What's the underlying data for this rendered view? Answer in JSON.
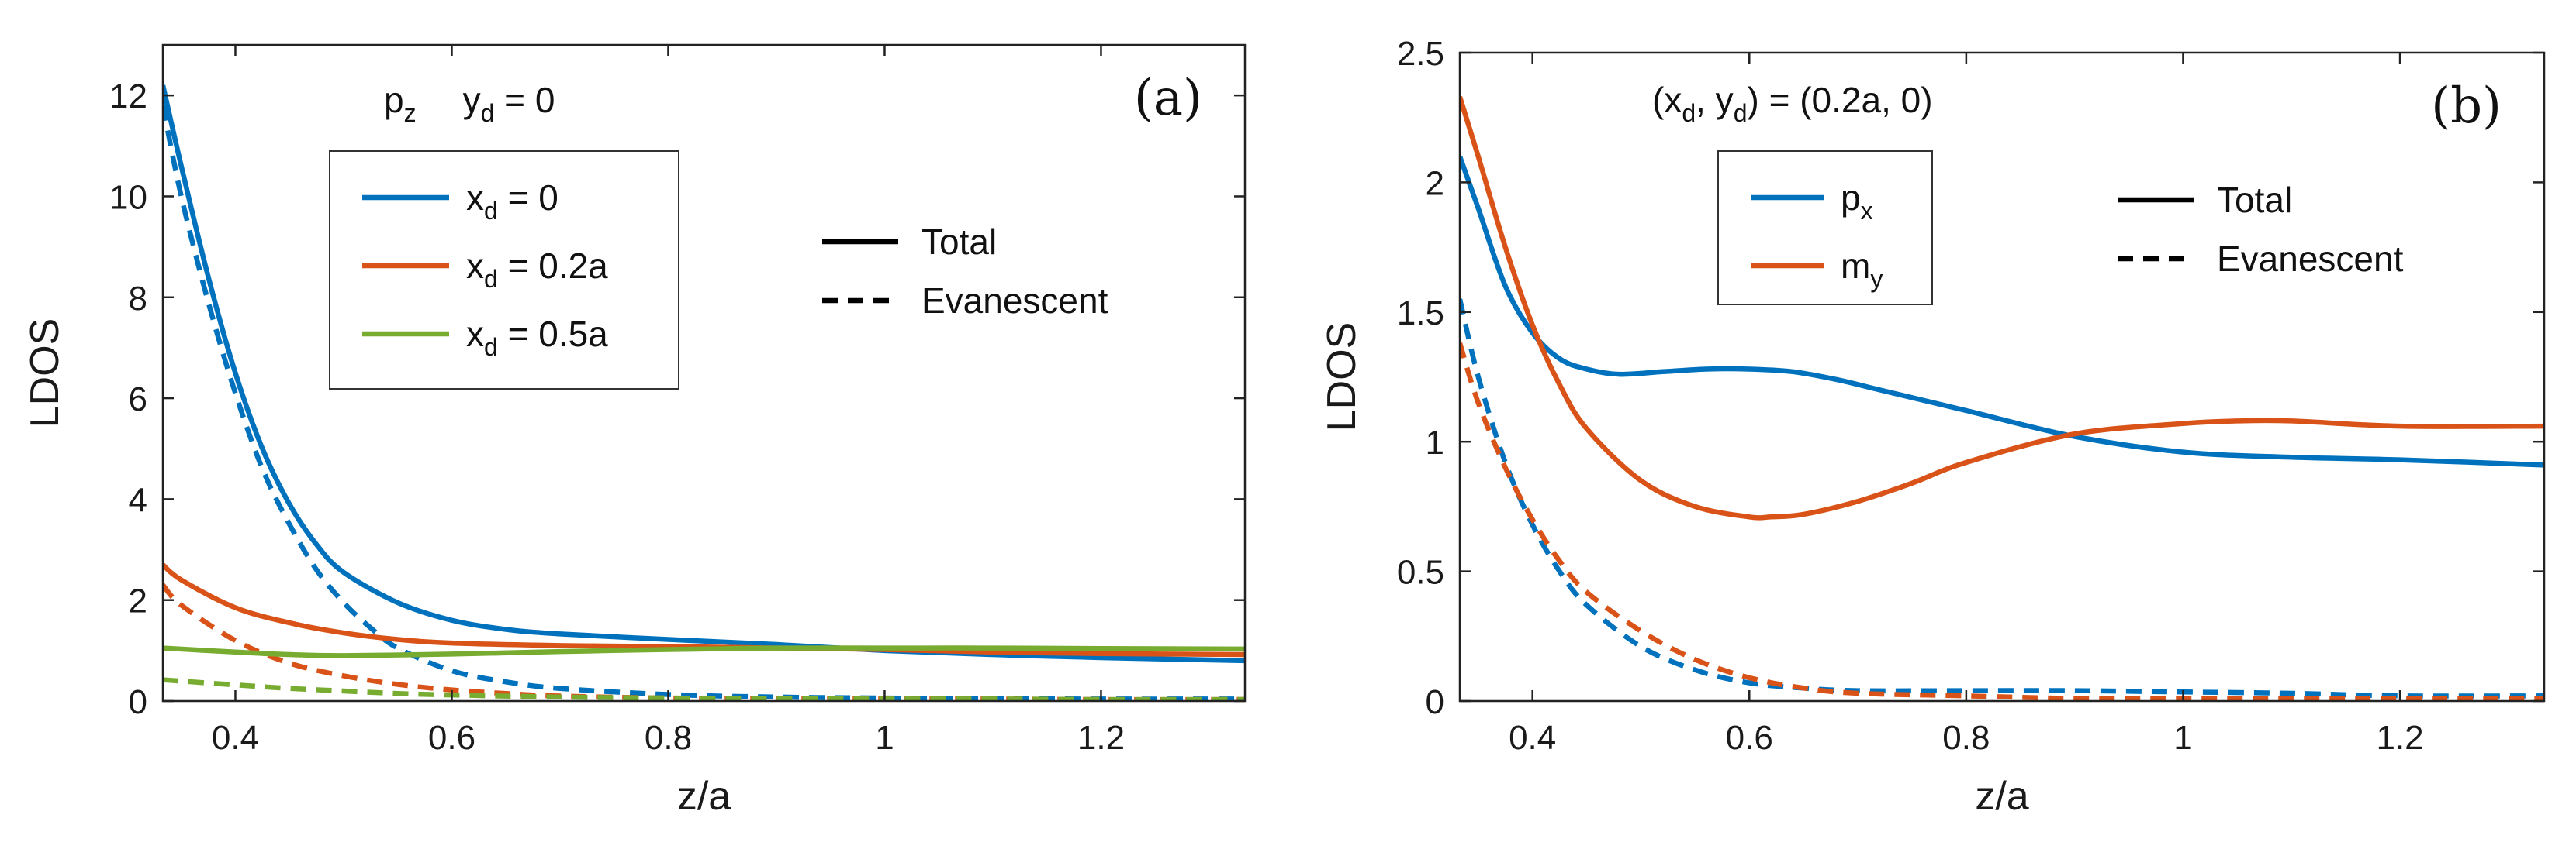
{
  "chart_data": [
    {
      "type": "line",
      "panel_label": "(a)",
      "xlabel": "z/a",
      "ylabel": "LDOS",
      "xlim": [
        0.333,
        1.333
      ],
      "ylim": [
        0,
        13
      ],
      "xticks": [
        "0.4",
        "0.6",
        "0.8",
        "1",
        "1.2"
      ],
      "xtick_values": [
        0.4,
        0.6,
        0.8,
        1.0,
        1.2
      ],
      "yticks": [
        "0",
        "2",
        "4",
        "6",
        "8",
        "10",
        "12"
      ],
      "ytick_values": [
        0,
        2,
        4,
        6,
        8,
        10,
        12
      ],
      "annotation": {
        "dipole": "p",
        "dipole_sub": "z",
        "cond": "y",
        "cond_sub": "d",
        "cond_val": " = 0"
      },
      "legend_color": [
        {
          "main": "x",
          "sub": "d",
          "rest": " = 0",
          "color": "#0072BD"
        },
        {
          "main": "x",
          "sub": "d",
          "rest": " = 0.2a",
          "color": "#D95319"
        },
        {
          "main": "x",
          "sub": "d",
          "rest": " = 0.5a",
          "color": "#77AC30"
        }
      ],
      "legend_style": [
        {
          "label": "Total",
          "style": "solid"
        },
        {
          "label": "Evanescent",
          "style": "dashed"
        }
      ],
      "series": [
        {
          "name": "x_d = 0 Total",
          "color": "#0072BD",
          "style": "solid",
          "x": [
            0.333,
            0.35,
            0.375,
            0.4,
            0.425,
            0.45,
            0.475,
            0.5,
            0.55,
            0.6,
            0.65,
            0.7,
            0.8,
            0.9,
            1.0,
            1.1,
            1.2,
            1.333
          ],
          "y": [
            12.2,
            10.6,
            8.4,
            6.5,
            5.0,
            3.9,
            3.1,
            2.55,
            1.95,
            1.6,
            1.42,
            1.33,
            1.22,
            1.12,
            1.0,
            0.92,
            0.86,
            0.8
          ]
        },
        {
          "name": "x_d = 0 Evanescent",
          "color": "#0072BD",
          "style": "dashed",
          "x": [
            0.333,
            0.35,
            0.375,
            0.4,
            0.425,
            0.45,
            0.475,
            0.5,
            0.525,
            0.55,
            0.6,
            0.65,
            0.7,
            0.8,
            0.9,
            1.0,
            1.1,
            1.2,
            1.333
          ],
          "y": [
            11.8,
            10.0,
            7.9,
            6.1,
            4.6,
            3.5,
            2.6,
            1.95,
            1.45,
            1.05,
            0.6,
            0.38,
            0.25,
            0.13,
            0.08,
            0.06,
            0.05,
            0.04,
            0.04
          ]
        },
        {
          "name": "x_d = 0.2a Total",
          "color": "#D95319",
          "style": "solid",
          "x": [
            0.333,
            0.35,
            0.4,
            0.45,
            0.5,
            0.55,
            0.6,
            0.7,
            0.8,
            0.9,
            1.0,
            1.1,
            1.2,
            1.333
          ],
          "y": [
            2.7,
            2.4,
            1.85,
            1.55,
            1.35,
            1.22,
            1.15,
            1.1,
            1.08,
            1.05,
            1.02,
            0.97,
            0.94,
            0.92
          ]
        },
        {
          "name": "x_d = 0.2a Evanescent",
          "color": "#D95319",
          "style": "dashed",
          "x": [
            0.333,
            0.35,
            0.4,
            0.45,
            0.5,
            0.55,
            0.6,
            0.65,
            0.7,
            0.8,
            0.9,
            1.0,
            1.1,
            1.2,
            1.333
          ],
          "y": [
            2.3,
            1.9,
            1.2,
            0.75,
            0.5,
            0.33,
            0.22,
            0.15,
            0.1,
            0.06,
            0.05,
            0.04,
            0.04,
            0.03,
            0.03
          ]
        },
        {
          "name": "x_d = 0.5a Total",
          "color": "#77AC30",
          "style": "solid",
          "x": [
            0.333,
            0.4,
            0.45,
            0.5,
            0.6,
            0.7,
            0.8,
            0.9,
            1.0,
            1.1,
            1.2,
            1.333
          ],
          "y": [
            1.05,
            0.97,
            0.92,
            0.9,
            0.93,
            0.98,
            1.02,
            1.05,
            1.05,
            1.05,
            1.04,
            1.03
          ]
        },
        {
          "name": "x_d = 0.5a Evanescent",
          "color": "#77AC30",
          "style": "dashed",
          "x": [
            0.333,
            0.4,
            0.45,
            0.5,
            0.55,
            0.6,
            0.7,
            0.8,
            0.9,
            1.0,
            1.1,
            1.2,
            1.333
          ],
          "y": [
            0.42,
            0.32,
            0.25,
            0.2,
            0.15,
            0.12,
            0.08,
            0.06,
            0.05,
            0.04,
            0.04,
            0.03,
            0.03
          ]
        }
      ]
    },
    {
      "type": "line",
      "panel_label": "(b)",
      "xlabel": "z/a",
      "ylabel": "LDOS",
      "xlim": [
        0.333,
        1.333
      ],
      "ylim": [
        0,
        2.5
      ],
      "xticks": [
        "0.4",
        "0.6",
        "0.8",
        "1",
        "1.2"
      ],
      "xtick_values": [
        0.4,
        0.6,
        0.8,
        1.0,
        1.2
      ],
      "yticks": [
        "0",
        "0.5",
        "1",
        "1.5",
        "2",
        "2.5"
      ],
      "ytick_values": [
        0,
        0.5,
        1,
        1.5,
        2,
        2.5
      ],
      "annotation": {
        "text_a": "(x",
        "sub_a": "d",
        "text_b": ", y",
        "sub_b": "d",
        "text_c": ") = (0.2a, 0)"
      },
      "legend_color": [
        {
          "main": "p",
          "sub": "x",
          "rest": "",
          "color": "#0072BD"
        },
        {
          "main": "m",
          "sub": "y",
          "rest": "",
          "color": "#D95319"
        }
      ],
      "legend_style": [
        {
          "label": "Total",
          "style": "solid"
        },
        {
          "label": "Evanescent",
          "style": "dashed"
        }
      ],
      "series": [
        {
          "name": "p_x Total",
          "color": "#0072BD",
          "style": "solid",
          "x": [
            0.333,
            0.35,
            0.375,
            0.4,
            0.425,
            0.45,
            0.48,
            0.52,
            0.56,
            0.6,
            0.64,
            0.68,
            0.72,
            0.8,
            0.9,
            1.0,
            1.1,
            1.2,
            1.333
          ],
          "y": [
            2.1,
            1.9,
            1.6,
            1.42,
            1.32,
            1.28,
            1.26,
            1.27,
            1.28,
            1.28,
            1.27,
            1.24,
            1.2,
            1.12,
            1.02,
            0.96,
            0.94,
            0.93,
            0.91
          ]
        },
        {
          "name": "m_y Total",
          "color": "#D95319",
          "style": "solid",
          "x": [
            0.333,
            0.35,
            0.375,
            0.4,
            0.425,
            0.45,
            0.5,
            0.55,
            0.6,
            0.62,
            0.65,
            0.7,
            0.75,
            0.8,
            0.9,
            1.0,
            1.05,
            1.1,
            1.2,
            1.333
          ],
          "y": [
            2.33,
            2.1,
            1.75,
            1.45,
            1.22,
            1.05,
            0.85,
            0.75,
            0.71,
            0.71,
            0.72,
            0.77,
            0.84,
            0.92,
            1.03,
            1.07,
            1.08,
            1.08,
            1.06,
            1.06
          ]
        },
        {
          "name": "p_x Evanescent",
          "color": "#0072BD",
          "style": "dashed",
          "x": [
            0.333,
            0.35,
            0.375,
            0.4,
            0.425,
            0.45,
            0.5,
            0.55,
            0.6,
            0.65,
            0.7,
            0.8,
            0.9,
            1.0,
            1.1,
            1.2,
            1.333
          ],
          "y": [
            1.55,
            1.25,
            0.92,
            0.68,
            0.5,
            0.37,
            0.21,
            0.12,
            0.07,
            0.05,
            0.04,
            0.04,
            0.04,
            0.035,
            0.03,
            0.02,
            0.02
          ]
        },
        {
          "name": "m_y Evanescent",
          "color": "#D95319",
          "style": "dashed",
          "x": [
            0.333,
            0.35,
            0.375,
            0.4,
            0.425,
            0.45,
            0.5,
            0.55,
            0.6,
            0.65,
            0.7,
            0.8,
            0.9,
            1.0,
            1.1,
            1.2,
            1.333
          ],
          "y": [
            1.38,
            1.15,
            0.9,
            0.7,
            0.54,
            0.42,
            0.27,
            0.16,
            0.09,
            0.05,
            0.03,
            0.02,
            0.01,
            0.01,
            0.01,
            0.01,
            0.01
          ]
        }
      ]
    }
  ]
}
